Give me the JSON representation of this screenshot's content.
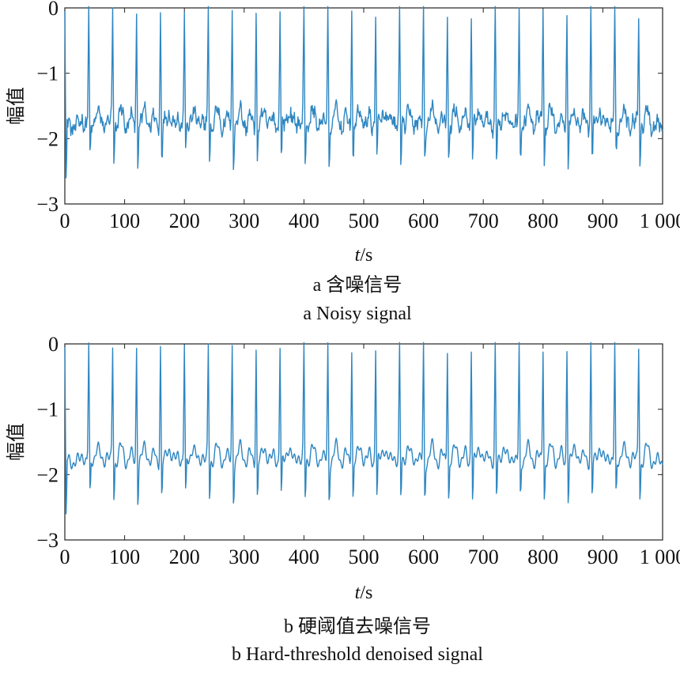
{
  "chart_data": [
    {
      "type": "line",
      "xlabel": "t/s",
      "ylabel": "幅值",
      "xlim": [
        0,
        1000
      ],
      "ylim": [
        -3,
        0
      ],
      "xticks": [
        0,
        100,
        200,
        300,
        400,
        500,
        600,
        700,
        800,
        900,
        1000
      ],
      "xtick_labels": [
        "0",
        "100",
        "200",
        "300",
        "400",
        "500",
        "600",
        "700",
        "800",
        "900",
        "1 000"
      ],
      "yticks": [
        0,
        -1,
        -2,
        -3
      ],
      "ytick_labels": [
        "0",
        "−1",
        "−2",
        "−3"
      ],
      "caption_cn": "a  含噪信号",
      "caption_en": "a  Noisy signal",
      "color": "#2e86c1",
      "noisy": true,
      "series": [
        {
          "x": [
            0,
            3,
            40,
            80,
            120,
            160,
            200,
            240,
            280,
            320,
            360,
            400,
            440,
            480,
            520,
            560,
            600,
            640,
            680,
            720,
            760,
            800,
            840,
            880,
            920,
            960,
            1000
          ],
          "y": [
            -0.05,
            -2.6,
            -0.05,
            -0.05,
            -0.05,
            -0.05,
            0.0,
            -0.05,
            -0.05,
            -0.05,
            -0.05,
            0.0,
            -0.05,
            -0.05,
            -0.05,
            -0.05,
            -0.05,
            -0.05,
            -0.05,
            -0.05,
            -0.05,
            -0.05,
            -0.05,
            -0.05,
            -0.05,
            -0.05,
            -1.6
          ]
        }
      ]
    },
    {
      "type": "line",
      "xlabel": "t/s",
      "ylabel": "幅值",
      "xlim": [
        0,
        1000
      ],
      "ylim": [
        -3,
        0
      ],
      "xticks": [
        0,
        100,
        200,
        300,
        400,
        500,
        600,
        700,
        800,
        900,
        1000
      ],
      "xtick_labels": [
        "0",
        "100",
        "200",
        "300",
        "400",
        "500",
        "600",
        "700",
        "800",
        "900",
        "1 000"
      ],
      "yticks": [
        0,
        -1,
        -2,
        -3
      ],
      "ytick_labels": [
        "0",
        "−1",
        "−2",
        "−3"
      ],
      "caption_cn": "b  硬阈值去噪信号",
      "caption_en": "b  Hard-threshold denoised signal",
      "color": "#2e86c1",
      "noisy": false,
      "series": [
        {
          "x": [
            0,
            3,
            40,
            80,
            120,
            160,
            200,
            240,
            280,
            320,
            360,
            400,
            440,
            480,
            520,
            560,
            600,
            640,
            680,
            720,
            760,
            800,
            840,
            880,
            920,
            960,
            1000
          ],
          "y": [
            -0.05,
            -2.6,
            -0.05,
            -0.05,
            -0.05,
            -0.05,
            0.0,
            -0.05,
            -0.05,
            -0.05,
            -0.05,
            0.0,
            -0.05,
            -0.05,
            -0.05,
            -0.05,
            -0.05,
            -0.05,
            -0.05,
            -0.05,
            -0.05,
            -0.05,
            -0.05,
            -0.05,
            -0.05,
            -0.05,
            -1.6
          ]
        }
      ]
    }
  ]
}
